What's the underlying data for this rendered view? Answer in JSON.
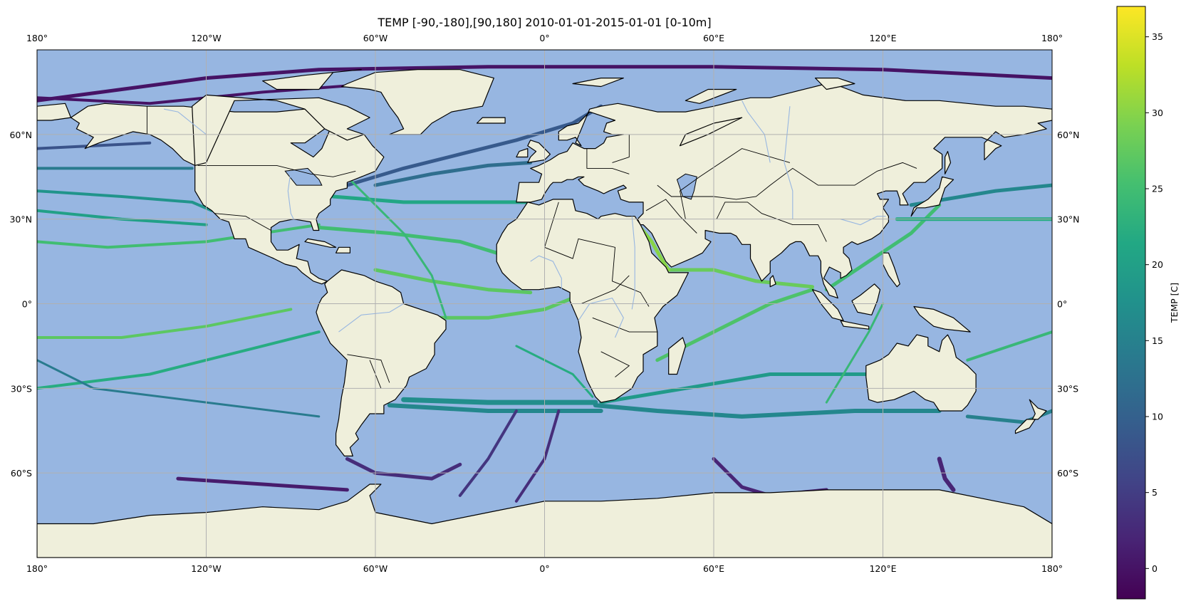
{
  "title": "TEMP [-90,-180],[90,180] 2010-01-01-2015-01-01 [0-10m]",
  "colors": {
    "ocean": "#97b6e1",
    "land": "#efefdb",
    "coast": "#000000",
    "rivers": "#97b6e1",
    "grid": "#b0b0b0"
  },
  "map": {
    "lon_ticks": [
      {
        "value": -180,
        "label": "180°"
      },
      {
        "value": -120,
        "label": "120°W"
      },
      {
        "value": -60,
        "label": "60°W"
      },
      {
        "value": 0,
        "label": "0°"
      },
      {
        "value": 60,
        "label": "60°E"
      },
      {
        "value": 120,
        "label": "120°E"
      },
      {
        "value": 180,
        "label": "180°"
      }
    ],
    "lat_ticks": [
      {
        "value": 60,
        "label": "60°N"
      },
      {
        "value": 30,
        "label": "30°N"
      },
      {
        "value": 0,
        "label": "0°"
      },
      {
        "value": -30,
        "label": "30°S"
      },
      {
        "value": -60,
        "label": "60°S"
      }
    ]
  },
  "chart_data": {
    "type": "scatter",
    "title": "TEMP [-90,-180],[90,180] 2010-01-01-2015-01-01 [0-10m]",
    "xlim": [
      -180,
      180
    ],
    "ylim": [
      -90,
      90
    ],
    "xlabel": "",
    "ylabel": "",
    "grid": true,
    "projection": "PlateCarree",
    "colormap": "viridis",
    "colorbar": {
      "label": "TEMP [C]",
      "range": [
        -2,
        37
      ],
      "ticks": [
        0,
        5,
        10,
        15,
        20,
        25,
        30,
        35
      ]
    }
  }
}
